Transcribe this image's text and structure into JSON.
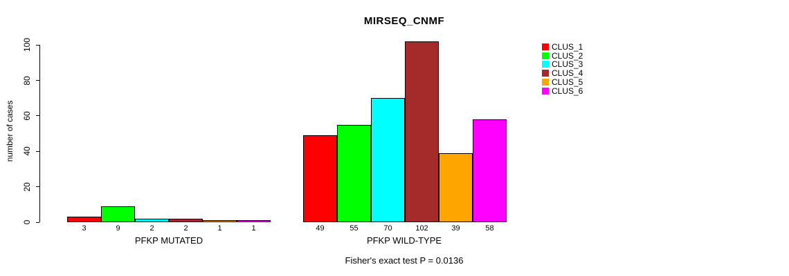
{
  "figure": {
    "title": "MIRSEQ_CNMF",
    "footer": "Fisher's exact test P = 0.0136"
  },
  "chart_data": {
    "type": "bar",
    "title": "MIRSEQ_CNMF",
    "xlabel": "",
    "ylabel": "number of cases",
    "yticks": [
      0,
      20,
      40,
      60,
      80,
      100
    ],
    "ylim": [
      0,
      105
    ],
    "grid": false,
    "legend_position": "top-right-outside",
    "bar_border_color": "#000000",
    "series": [
      {
        "name": "CLUS_1",
        "color": "#FF0000"
      },
      {
        "name": "CLUS_2",
        "color": "#00FF00"
      },
      {
        "name": "CLUS_3",
        "color": "#00FFFF"
      },
      {
        "name": "CLUS_4",
        "color": "#A52A2A"
      },
      {
        "name": "CLUS_5",
        "color": "#FFA500"
      },
      {
        "name": "CLUS_6",
        "color": "#FF00FF"
      }
    ],
    "groups": [
      {
        "label": "PFKP MUTATED",
        "values": [
          3,
          9,
          2,
          2,
          1,
          1
        ]
      },
      {
        "label": "PFKP WILD-TYPE",
        "values": [
          49,
          55,
          70,
          102,
          39,
          58
        ]
      }
    ],
    "annotation": "Fisher's exact test P = 0.0136"
  }
}
